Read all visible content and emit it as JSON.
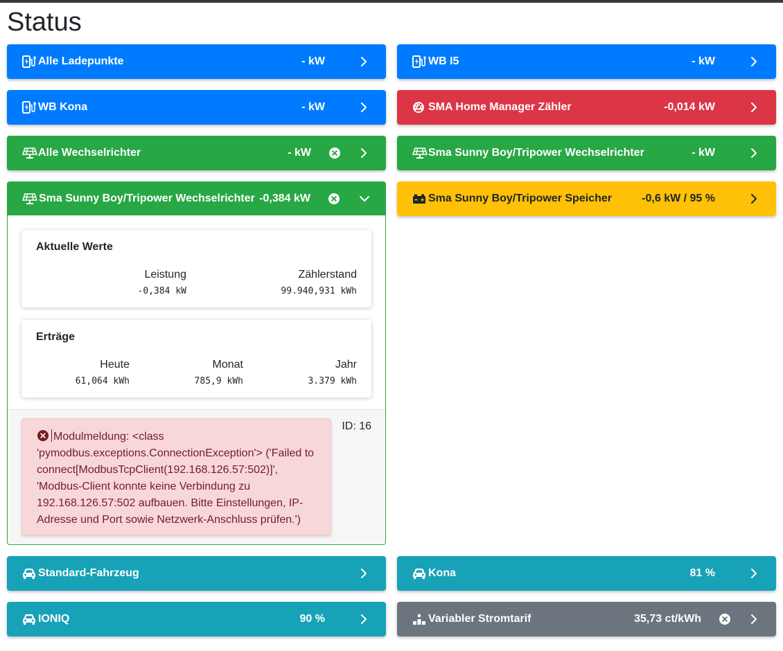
{
  "page": {
    "title": "Status"
  },
  "colors": {
    "blue": "#007bff",
    "red": "#dc3545",
    "green": "#28a745",
    "yellow": "#ffc107",
    "teal": "#17a2b8",
    "gray": "#6c757d"
  },
  "cards": {
    "alle_ladepunkte": {
      "name": "Alle Ladepunkte",
      "value": "- kW"
    },
    "wb_i5": {
      "name": "WB I5",
      "value": "- kW"
    },
    "wb_kona": {
      "name": "WB Kona",
      "value": "- kW"
    },
    "sma_home_manager": {
      "name": "SMA Home Manager Zähler",
      "value": "-0,014 kW"
    },
    "alle_wechselrichter": {
      "name": "Alle Wechselrichter",
      "value": "- kW"
    },
    "sma_wr_1": {
      "name": "Sma Sunny Boy/Tripower Wechselrichter",
      "value": "- kW"
    },
    "sma_speicher": {
      "name": "Sma Sunny Boy/Tripower Speicher",
      "value": "-0,6 kW / 95 %"
    },
    "standard_fahrzeug": {
      "name": "Standard-Fahrzeug",
      "value": ""
    },
    "kona": {
      "name": "Kona",
      "value": "81 %"
    },
    "ioniq": {
      "name": "IONIQ",
      "value": "90 %"
    },
    "stromtarif": {
      "name": "Variabler Stromtarif",
      "value": "35,73 ct/kWh"
    }
  },
  "expanded": {
    "name": "Sma Sunny Boy/Tripower Wechselrichter",
    "value": "-0,384 kW",
    "aktuelle_werte": {
      "heading": "Aktuelle Werte",
      "leistung_label": "Leistung",
      "leistung_value": "-0,384 kW",
      "zaehlerstand_label": "Zählerstand",
      "zaehlerstand_value": "99.940,931 kWh"
    },
    "ertraege": {
      "heading": "Erträge",
      "heute_label": "Heute",
      "heute_value": "61,064 kWh",
      "monat_label": "Monat",
      "monat_value": "785,9 kWh",
      "jahr_label": "Jahr",
      "jahr_value": "3.379 kWh"
    },
    "alert": {
      "message": "Modulmeldung: <class 'pymodbus.exceptions.ConnectionException'> ('Failed to connect[ModbusTcpClient(192.168.126.57:502)]', 'Modbus-Client konnte keine Verbindung zu 192.168.126.57:502 aufbauen. Bitte Einstellungen, IP-Adresse und Port sowie Netzwerk-Anschluss prüfen.')"
    },
    "id_text": "ID: 16"
  }
}
